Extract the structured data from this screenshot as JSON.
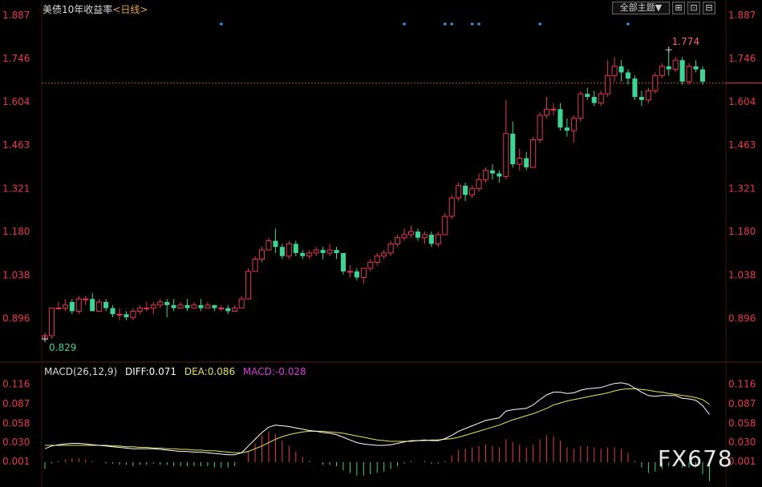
{
  "header": {
    "title": "美债10年收益率",
    "period": "<日线>"
  },
  "toolbar": {
    "theme_label": "全部主题▼",
    "icon1": "⊞",
    "icon2": "⊡",
    "icon3": "⊟"
  },
  "macd": {
    "params": "MACD(26,12,9)",
    "diff": "DIFF:0.071",
    "dea": "DEA:0.086",
    "macd": "MACD:-0.028"
  },
  "watermark": "FX678",
  "colors": {
    "up": "#e8394c",
    "down": "#3ed493",
    "diff": "#ffffff",
    "dea": "#e8e45a",
    "macd_label": "#d93cd9",
    "axis": "#e8394c"
  },
  "chart_data": [
    {
      "type": "candlestick",
      "title": "美债10年收益率",
      "y_ticks": [
        1.887,
        1.746,
        1.604,
        1.463,
        1.321,
        1.18,
        1.038,
        0.896
      ],
      "ylim": [
        0.78,
        1.9
      ],
      "reference_line": 1.665,
      "annotations": [
        {
          "label": "1.774",
          "value": 1.774
        },
        {
          "label": "0.829",
          "value": 0.829
        }
      ],
      "markers_count": 7,
      "candles": [
        [
          0.83,
          0.84,
          0.83,
          0.85
        ],
        [
          0.84,
          0.93,
          0.83,
          0.93
        ],
        [
          0.93,
          0.93,
          0.93,
          0.95
        ],
        [
          0.93,
          0.94,
          0.92,
          0.96
        ],
        [
          0.95,
          0.92,
          0.91,
          0.96
        ],
        [
          0.92,
          0.96,
          0.91,
          0.97
        ],
        [
          0.96,
          0.96,
          0.94,
          0.97
        ],
        [
          0.96,
          0.92,
          0.92,
          0.98
        ],
        [
          0.92,
          0.95,
          0.92,
          0.96
        ],
        [
          0.95,
          0.93,
          0.92,
          0.96
        ],
        [
          0.93,
          0.91,
          0.9,
          0.94
        ],
        [
          0.91,
          0.91,
          0.89,
          0.93
        ],
        [
          0.91,
          0.9,
          0.89,
          0.92
        ],
        [
          0.9,
          0.92,
          0.89,
          0.93
        ],
        [
          0.92,
          0.93,
          0.91,
          0.94
        ],
        [
          0.93,
          0.93,
          0.92,
          0.95
        ],
        [
          0.93,
          0.94,
          0.91,
          0.95
        ],
        [
          0.94,
          0.95,
          0.93,
          0.96
        ],
        [
          0.95,
          0.94,
          0.9,
          0.96
        ],
        [
          0.94,
          0.93,
          0.92,
          0.96
        ],
        [
          0.93,
          0.94,
          0.93,
          0.95
        ],
        [
          0.94,
          0.93,
          0.92,
          0.96
        ],
        [
          0.93,
          0.94,
          0.93,
          0.95
        ],
        [
          0.94,
          0.93,
          0.92,
          0.96
        ],
        [
          0.93,
          0.94,
          0.93,
          0.95
        ],
        [
          0.94,
          0.93,
          0.92,
          0.94
        ],
        [
          0.93,
          0.93,
          0.92,
          0.94
        ],
        [
          0.93,
          0.92,
          0.91,
          0.94
        ],
        [
          0.92,
          0.93,
          0.92,
          0.94
        ],
        [
          0.93,
          0.96,
          0.93,
          0.97
        ],
        [
          0.96,
          1.05,
          0.96,
          1.06
        ],
        [
          1.05,
          1.09,
          1.05,
          1.1
        ],
        [
          1.09,
          1.12,
          1.08,
          1.13
        ],
        [
          1.12,
          1.15,
          1.12,
          1.16
        ],
        [
          1.15,
          1.13,
          1.11,
          1.19
        ],
        [
          1.13,
          1.1,
          1.09,
          1.14
        ],
        [
          1.1,
          1.14,
          1.09,
          1.15
        ],
        [
          1.14,
          1.11,
          1.1,
          1.15
        ],
        [
          1.11,
          1.1,
          1.09,
          1.12
        ],
        [
          1.1,
          1.11,
          1.09,
          1.12
        ],
        [
          1.11,
          1.12,
          1.1,
          1.13
        ],
        [
          1.12,
          1.11,
          1.09,
          1.13
        ],
        [
          1.11,
          1.12,
          1.1,
          1.14
        ],
        [
          1.12,
          1.11,
          1.09,
          1.13
        ],
        [
          1.11,
          1.05,
          1.04,
          1.11
        ],
        [
          1.05,
          1.05,
          1.03,
          1.07
        ],
        [
          1.05,
          1.03,
          1.02,
          1.06
        ],
        [
          1.03,
          1.06,
          1.01,
          1.06
        ],
        [
          1.06,
          1.08,
          1.05,
          1.09
        ],
        [
          1.08,
          1.1,
          1.07,
          1.11
        ],
        [
          1.1,
          1.11,
          1.09,
          1.12
        ],
        [
          1.11,
          1.14,
          1.1,
          1.15
        ],
        [
          1.14,
          1.16,
          1.13,
          1.17
        ],
        [
          1.16,
          1.17,
          1.15,
          1.19
        ],
        [
          1.17,
          1.18,
          1.16,
          1.2
        ],
        [
          1.18,
          1.16,
          1.15,
          1.19
        ],
        [
          1.16,
          1.17,
          1.14,
          1.18
        ],
        [
          1.17,
          1.14,
          1.13,
          1.18
        ],
        [
          1.14,
          1.17,
          1.13,
          1.18
        ],
        [
          1.17,
          1.23,
          1.17,
          1.24
        ],
        [
          1.23,
          1.29,
          1.22,
          1.3
        ],
        [
          1.29,
          1.33,
          1.28,
          1.34
        ],
        [
          1.33,
          1.3,
          1.28,
          1.34
        ],
        [
          1.3,
          1.32,
          1.29,
          1.33
        ],
        [
          1.32,
          1.35,
          1.31,
          1.37
        ],
        [
          1.35,
          1.38,
          1.34,
          1.39
        ],
        [
          1.38,
          1.37,
          1.35,
          1.4
        ],
        [
          1.37,
          1.36,
          1.34,
          1.38
        ],
        [
          1.36,
          1.5,
          1.35,
          1.61
        ],
        [
          1.5,
          1.4,
          1.39,
          1.54
        ],
        [
          1.4,
          1.42,
          1.38,
          1.45
        ],
        [
          1.42,
          1.39,
          1.38,
          1.44
        ],
        [
          1.39,
          1.48,
          1.39,
          1.49
        ],
        [
          1.48,
          1.56,
          1.47,
          1.57
        ],
        [
          1.56,
          1.58,
          1.55,
          1.62
        ],
        [
          1.58,
          1.58,
          1.56,
          1.6
        ],
        [
          1.58,
          1.52,
          1.51,
          1.6
        ],
        [
          1.52,
          1.51,
          1.49,
          1.55
        ],
        [
          1.51,
          1.55,
          1.47,
          1.56
        ],
        [
          1.55,
          1.63,
          1.54,
          1.64
        ],
        [
          1.63,
          1.62,
          1.61,
          1.65
        ],
        [
          1.62,
          1.6,
          1.59,
          1.64
        ],
        [
          1.6,
          1.63,
          1.59,
          1.64
        ],
        [
          1.63,
          1.69,
          1.62,
          1.74
        ],
        [
          1.69,
          1.72,
          1.67,
          1.75
        ],
        [
          1.72,
          1.7,
          1.67,
          1.74
        ],
        [
          1.7,
          1.68,
          1.66,
          1.71
        ],
        [
          1.68,
          1.62,
          1.61,
          1.69
        ],
        [
          1.62,
          1.61,
          1.59,
          1.64
        ],
        [
          1.61,
          1.64,
          1.6,
          1.65
        ],
        [
          1.64,
          1.69,
          1.63,
          1.7
        ],
        [
          1.69,
          1.72,
          1.68,
          1.73
        ],
        [
          1.72,
          1.71,
          1.69,
          1.774
        ],
        [
          1.71,
          1.74,
          1.7,
          1.75
        ],
        [
          1.74,
          1.67,
          1.66,
          1.75
        ],
        [
          1.67,
          1.72,
          1.66,
          1.73
        ],
        [
          1.72,
          1.71,
          1.7,
          1.74
        ],
        [
          1.71,
          1.67,
          1.66,
          1.72
        ]
      ]
    },
    {
      "type": "macd",
      "title": "MACD(26,12,9)",
      "y_ticks": [
        0.116,
        0.087,
        0.058,
        0.03,
        0.001
      ],
      "ylim": [
        -0.025,
        0.125
      ],
      "diff": [
        0.02,
        0.024,
        0.026,
        0.027,
        0.028,
        0.028,
        0.027,
        0.026,
        0.025,
        0.024,
        0.023,
        0.022,
        0.021,
        0.02,
        0.02,
        0.02,
        0.02,
        0.019,
        0.018,
        0.017,
        0.016,
        0.016,
        0.015,
        0.015,
        0.014,
        0.013,
        0.012,
        0.011,
        0.011,
        0.014,
        0.024,
        0.034,
        0.044,
        0.052,
        0.055,
        0.054,
        0.053,
        0.051,
        0.049,
        0.047,
        0.046,
        0.044,
        0.043,
        0.041,
        0.037,
        0.033,
        0.029,
        0.027,
        0.026,
        0.025,
        0.025,
        0.026,
        0.028,
        0.03,
        0.032,
        0.032,
        0.033,
        0.032,
        0.032,
        0.035,
        0.04,
        0.046,
        0.05,
        0.054,
        0.058,
        0.062,
        0.064,
        0.066,
        0.076,
        0.078,
        0.079,
        0.08,
        0.085,
        0.093,
        0.1,
        0.104,
        0.104,
        0.102,
        0.103,
        0.107,
        0.109,
        0.11,
        0.111,
        0.114,
        0.117,
        0.118,
        0.116,
        0.11,
        0.104,
        0.099,
        0.098,
        0.099,
        0.099,
        0.099,
        0.095,
        0.094,
        0.092,
        0.084,
        0.071
      ],
      "dea": [
        0.025,
        0.025,
        0.025,
        0.025,
        0.025,
        0.025,
        0.025,
        0.025,
        0.025,
        0.025,
        0.024,
        0.024,
        0.023,
        0.023,
        0.022,
        0.022,
        0.021,
        0.021,
        0.02,
        0.02,
        0.019,
        0.019,
        0.018,
        0.018,
        0.017,
        0.017,
        0.016,
        0.015,
        0.014,
        0.014,
        0.016,
        0.02,
        0.024,
        0.029,
        0.034,
        0.038,
        0.041,
        0.043,
        0.045,
        0.046,
        0.046,
        0.046,
        0.045,
        0.044,
        0.043,
        0.041,
        0.039,
        0.037,
        0.035,
        0.033,
        0.032,
        0.031,
        0.031,
        0.031,
        0.031,
        0.032,
        0.032,
        0.033,
        0.033,
        0.034,
        0.035,
        0.037,
        0.04,
        0.043,
        0.046,
        0.049,
        0.052,
        0.055,
        0.059,
        0.063,
        0.066,
        0.069,
        0.072,
        0.076,
        0.08,
        0.085,
        0.088,
        0.091,
        0.093,
        0.095,
        0.097,
        0.099,
        0.101,
        0.103,
        0.106,
        0.108,
        0.109,
        0.109,
        0.108,
        0.107,
        0.105,
        0.104,
        0.102,
        0.101,
        0.099,
        0.098,
        0.096,
        0.093,
        0.086
      ],
      "macd": [
        -0.01,
        -0.002,
        0.002,
        0.004,
        0.006,
        0.006,
        0.004,
        0.002,
        0.0,
        -0.002,
        -0.002,
        -0.004,
        -0.004,
        -0.006,
        -0.004,
        -0.004,
        -0.002,
        -0.004,
        -0.004,
        -0.006,
        -0.006,
        -0.006,
        -0.006,
        -0.006,
        -0.006,
        -0.008,
        -0.008,
        -0.008,
        -0.006,
        0.0,
        0.016,
        0.028,
        0.04,
        0.046,
        0.042,
        0.032,
        0.024,
        0.016,
        0.008,
        0.002,
        0.0,
        -0.004,
        -0.004,
        -0.006,
        -0.012,
        -0.016,
        -0.02,
        -0.02,
        -0.018,
        -0.016,
        -0.014,
        -0.01,
        -0.006,
        -0.002,
        0.002,
        0.0,
        0.002,
        -0.002,
        -0.002,
        0.002,
        0.01,
        0.018,
        0.02,
        0.022,
        0.024,
        0.026,
        0.024,
        0.022,
        0.034,
        0.03,
        0.026,
        0.022,
        0.026,
        0.034,
        0.04,
        0.038,
        0.032,
        0.022,
        0.02,
        0.024,
        0.024,
        0.022,
        0.02,
        0.022,
        0.022,
        0.02,
        0.014,
        0.002,
        -0.008,
        -0.016,
        -0.014,
        -0.01,
        -0.006,
        -0.004,
        -0.008,
        -0.008,
        -0.008,
        -0.018,
        -0.028
      ]
    }
  ]
}
